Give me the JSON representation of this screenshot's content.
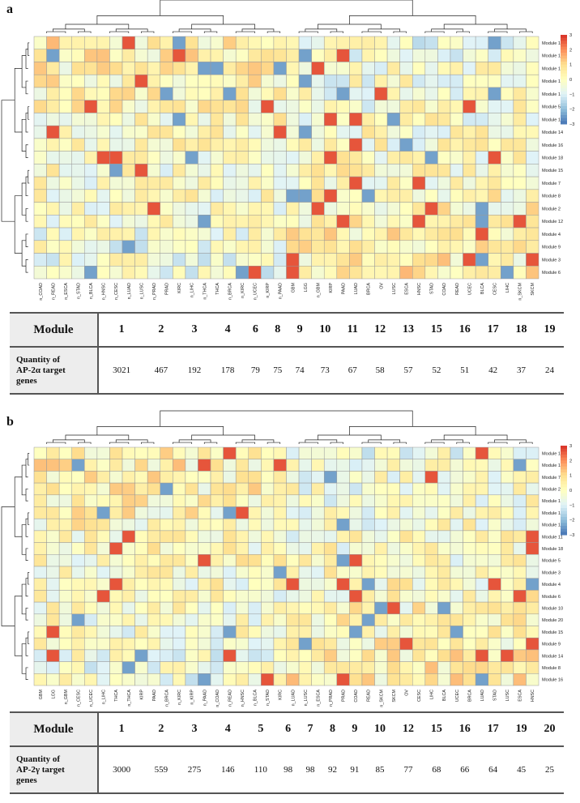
{
  "panel_a": {
    "letter": "a",
    "chart_data": {
      "type": "heatmap",
      "columns": [
        "n_COAD",
        "n_READ",
        "n_ESCA",
        "n_STAD",
        "n_BLCA",
        "n_HNSC",
        "n_CESC",
        "n_LUAD",
        "n_LUSC",
        "n_PRAD",
        "PRAD",
        "KIRC",
        "n_LIHC",
        "n_THCA",
        "THCA",
        "n_BRCA",
        "n_KIRC",
        "n_UCEC",
        "n_KIRP",
        "n_PAAD",
        "GBM",
        "LGG",
        "n_GBM",
        "KIRP",
        "PAAD",
        "LUAD",
        "BRCA",
        "OV",
        "LUSC",
        "ESCA",
        "HNSC",
        "STAD",
        "COAD",
        "READ",
        "UCEC",
        "BLCA",
        "CESC",
        "LIHC",
        "n_SKCM",
        "SKCM"
      ],
      "rows": [
        "Module 13",
        "Module 11",
        "Module 17",
        "Module 1",
        "Module 19",
        "Module 5",
        "Module 10",
        "Module 14",
        "Module 16",
        "Module 18",
        "Module 15",
        "Module 7",
        "Module 8",
        "Module 2",
        "Module 12",
        "Module 4",
        "Module 9",
        "Module 3",
        "Module 6"
      ],
      "value_range": [
        -3,
        3
      ],
      "legend_ticks": [
        3,
        2,
        1,
        0,
        -1,
        -2,
        -3
      ],
      "legend_labels": [
        "3",
        "2",
        "1",
        "0",
        "−1",
        "−2",
        "−3"
      ],
      "legend_position": "right"
    },
    "table": {
      "header": "Module",
      "row_label": "Quantity of AP-2α target genes",
      "row_label_lines": [
        "Quantity of",
        "AP-2α target",
        "genes"
      ],
      "modules": [
        "1",
        "2",
        "3",
        "4",
        "6",
        "8",
        "9",
        "10",
        "11",
        "12",
        "13",
        "15",
        "16",
        "17",
        "18",
        "19"
      ],
      "counts": [
        "3021",
        "467",
        "192",
        "178",
        "79",
        "75",
        "74",
        "73",
        "67",
        "58",
        "57",
        "52",
        "51",
        "42",
        "37",
        "24"
      ]
    }
  },
  "panel_b": {
    "letter": "b",
    "chart_data": {
      "type": "heatmap",
      "columns": [
        "GBM",
        "LGG",
        "n_GBM",
        "n_CESC",
        "n_UCEC",
        "n_LIHC",
        "THCA",
        "n_THCA",
        "KIRP",
        "PAAD",
        "n_BRCA",
        "n_KIRC",
        "n_KIRP",
        "n_PAAD",
        "n_COAD",
        "n_READ",
        "n_HNSC",
        "n_BLCA",
        "n_STAD",
        "KIRC",
        "n_LUAD",
        "n_LUSC",
        "n_ESCA",
        "n_PRAD",
        "PRAD",
        "COAD",
        "READ",
        "n_SKCM",
        "SKCM",
        "OV",
        "CESC",
        "LIHC",
        "BLCA",
        "UCEC",
        "BRCA",
        "LUAD",
        "STAD",
        "LUSC",
        "ESCA",
        "HNSC"
      ],
      "rows": [
        "Module 1",
        "Module 17",
        "Module 7",
        "Module 2",
        "Module 13",
        "Module 12",
        "Module 19",
        "Module 11",
        "Module 18",
        "Module 5",
        "Module 3",
        "Module 4",
        "Module 6",
        "Module 10",
        "Module 20",
        "Module 15",
        "Module 9",
        "Module 14",
        "Module 8",
        "Module 16"
      ],
      "value_range": [
        -3,
        3
      ],
      "legend_ticks": [
        3,
        2,
        1,
        0,
        -1,
        -2,
        -3
      ],
      "legend_labels": [
        "3",
        "2",
        "1",
        "0",
        "−1",
        "−2",
        "−3"
      ],
      "legend_position": "right"
    },
    "table": {
      "header": "Module",
      "row_label": "Quantity of AP-2γ target genes",
      "row_label_lines": [
        "Quantity of",
        "AP-2γ target",
        "genes"
      ],
      "modules": [
        "1",
        "2",
        "3",
        "4",
        "5",
        "6",
        "7",
        "8",
        "9",
        "10",
        "12",
        "15",
        "16",
        "17",
        "19",
        "20"
      ],
      "counts": [
        "3000",
        "559",
        "275",
        "146",
        "110",
        "98",
        "98",
        "92",
        "91",
        "85",
        "77",
        "68",
        "66",
        "64",
        "45",
        "25"
      ]
    }
  }
}
